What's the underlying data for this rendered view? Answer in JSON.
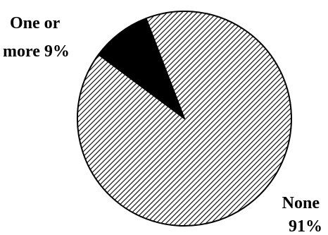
{
  "chart_data": {
    "type": "pie",
    "slices": [
      {
        "label_lines": [
          "One or",
          "more 9%"
        ],
        "value": 9,
        "fill": "solid"
      },
      {
        "label_lines": [
          "None",
          "91%"
        ],
        "value": 91,
        "fill": "hatched"
      }
    ],
    "colors": {
      "ink": "#000000",
      "background": "#ffffff"
    }
  }
}
